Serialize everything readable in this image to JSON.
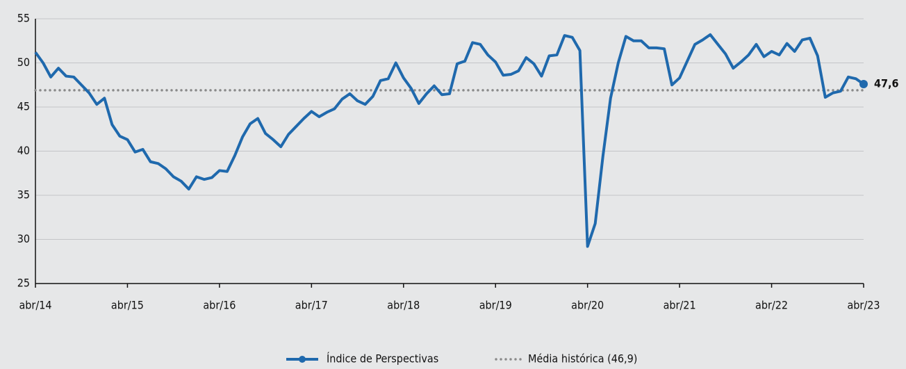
{
  "chart_data": {
    "type": "line",
    "categories": [
      "abr/14",
      null,
      null,
      null,
      null,
      null,
      null,
      null,
      null,
      null,
      null,
      null,
      "abr/15",
      null,
      null,
      null,
      null,
      null,
      null,
      null,
      null,
      null,
      null,
      null,
      "abr/16",
      null,
      null,
      null,
      null,
      null,
      null,
      null,
      null,
      null,
      null,
      null,
      "abr/17",
      null,
      null,
      null,
      null,
      null,
      null,
      null,
      null,
      null,
      null,
      null,
      "abr/18",
      null,
      null,
      null,
      null,
      null,
      null,
      null,
      null,
      null,
      null,
      null,
      "abr/19",
      null,
      null,
      null,
      null,
      null,
      null,
      null,
      null,
      null,
      null,
      null,
      "abr/20",
      null,
      null,
      null,
      null,
      null,
      null,
      null,
      null,
      null,
      null,
      null,
      "abr/21",
      null,
      null,
      null,
      null,
      null,
      null,
      null,
      null,
      null,
      null,
      null,
      "abr/22",
      null,
      null,
      null,
      null,
      null,
      null,
      null,
      null,
      null,
      null,
      null,
      "abr/23"
    ],
    "series": [
      {
        "name": "Índice de Perspectivas",
        "color": "#1f69ad",
        "values": [
          51.2,
          50.0,
          48.4,
          49.4,
          48.5,
          48.4,
          47.5,
          46.6,
          45.3,
          46.0,
          43.0,
          41.7,
          41.3,
          39.9,
          40.2,
          38.8,
          38.6,
          38.0,
          37.1,
          36.6,
          35.7,
          37.1,
          36.8,
          37.0,
          37.8,
          37.7,
          39.5,
          41.6,
          43.1,
          43.7,
          42.0,
          41.3,
          40.5,
          41.9,
          42.8,
          43.7,
          44.5,
          43.9,
          44.4,
          44.8,
          45.9,
          46.5,
          45.7,
          45.3,
          46.2,
          48.0,
          48.2,
          50.0,
          48.3,
          47.1,
          45.4,
          46.5,
          47.4,
          46.4,
          46.5,
          49.9,
          50.2,
          52.3,
          52.1,
          50.9,
          50.1,
          48.6,
          48.7,
          49.1,
          50.6,
          49.9,
          48.5,
          50.8,
          50.9,
          53.1,
          52.9,
          51.4,
          29.2,
          31.8,
          39.4,
          46.0,
          50.0,
          53.0,
          52.5,
          52.5,
          51.7,
          51.7,
          51.6,
          47.5,
          48.3,
          50.2,
          52.1,
          52.6,
          53.2,
          52.1,
          51.0,
          49.4,
          50.1,
          50.9,
          52.1,
          50.7,
          51.3,
          50.9,
          52.2,
          51.3,
          52.6,
          52.8,
          50.8,
          46.1,
          46.6,
          46.8,
          48.4,
          48.2,
          47.6
        ],
        "value_labels": [
          null,
          null,
          null,
          null,
          null,
          null,
          null,
          null,
          null,
          null,
          null,
          null,
          null,
          null,
          null,
          null,
          null,
          null,
          null,
          null,
          null,
          null,
          null,
          null,
          null,
          null,
          null,
          null,
          null,
          null,
          null,
          null,
          null,
          null,
          null,
          null,
          null,
          null,
          null,
          null,
          null,
          null,
          null,
          null,
          null,
          null,
          null,
          null,
          null,
          null,
          null,
          null,
          null,
          null,
          null,
          null,
          null,
          null,
          null,
          null,
          null,
          null,
          null,
          null,
          null,
          null,
          null,
          null,
          null,
          null,
          null,
          null,
          null,
          null,
          null,
          null,
          null,
          null,
          null,
          null,
          null,
          null,
          null,
          null,
          null,
          null,
          null,
          null,
          null,
          null,
          null,
          null,
          null,
          null,
          null,
          null,
          null,
          null,
          null,
          null,
          null,
          null,
          null,
          null,
          null,
          null,
          null,
          null,
          "47,6"
        ]
      }
    ],
    "reference_lines": [
      {
        "name": "Média histórica (46,9)",
        "value": 46.9,
        "color": "#8a8a8a"
      }
    ],
    "ylim": [
      25,
      55
    ],
    "yticks": [
      25,
      30,
      35,
      40,
      45,
      50,
      55
    ],
    "grid": true
  }
}
